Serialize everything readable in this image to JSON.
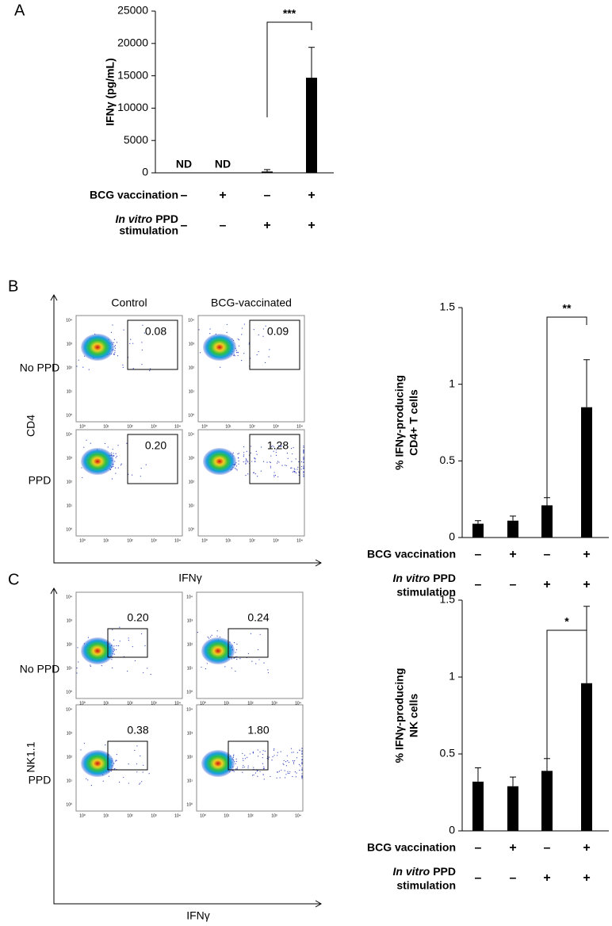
{
  "panel_labels": [
    "A",
    "B",
    "C"
  ],
  "chart_data": [
    {
      "type": "bar",
      "ylabel": [
        "IFNγ (pg/mL)"
      ],
      "categories": [
        null,
        null,
        null,
        null
      ],
      "values": [
        null,
        null,
        200,
        14700
      ],
      "errors": [
        null,
        null,
        300,
        4700
      ],
      "value_labels": [
        "ND",
        "ND",
        null,
        null
      ],
      "color": "#000000",
      "ylim": [
        0,
        25000
      ],
      "yticks": [
        0,
        5000,
        10000,
        15000,
        20000,
        25000
      ],
      "significance": {
        "from": 2,
        "to": 3,
        "label": "***"
      },
      "conditions": [
        {
          "label": "BCG vaccination",
          "signs": [
            "–",
            "+",
            "–",
            "+"
          ]
        },
        {
          "label_italic": "In vitro",
          "label": "PPD",
          "label_line2": "stimulation",
          "signs": [
            "–",
            "–",
            "+",
            "+"
          ]
        }
      ]
    },
    {
      "type": "bar",
      "ylabel": [
        "% IFNγ-producing",
        "CD4+ T cells"
      ],
      "categories": [
        null,
        null,
        null,
        null
      ],
      "values": [
        0.09,
        0.11,
        0.21,
        0.85
      ],
      "errors": [
        0.02,
        0.03,
        0.05,
        0.31
      ],
      "color": "#000000",
      "ylim": [
        0,
        1.5
      ],
      "yticks": [
        0,
        0.5,
        1,
        1.5
      ],
      "significance": {
        "from": 2,
        "to": 3,
        "label": "**"
      },
      "conditions": [
        {
          "label": "BCG vaccination",
          "signs": [
            "–",
            "+",
            "–",
            "+"
          ]
        },
        {
          "label_italic": "In vitro",
          "label": "PPD",
          "label_line2": "stimulation",
          "signs": [
            "–",
            "–",
            "+",
            "+"
          ]
        }
      ]
    },
    {
      "type": "bar",
      "ylabel": [
        "% IFNγ-producing",
        "NK cells"
      ],
      "categories": [
        null,
        null,
        null,
        null
      ],
      "values": [
        0.32,
        0.29,
        0.39,
        0.96
      ],
      "errors": [
        0.09,
        0.06,
        0.08,
        0.5
      ],
      "color": "#000000",
      "ylim": [
        0,
        1.5
      ],
      "yticks": [
        0,
        0.5,
        1,
        1.5
      ],
      "significance": {
        "from": 2,
        "to": 3,
        "label": "*"
      },
      "conditions": [
        {
          "label": "BCG vaccination",
          "signs": [
            "–",
            "+",
            "–",
            "+"
          ]
        },
        {
          "label_italic": "In vitro",
          "label": "PPD",
          "label_line2": "stimulation",
          "signs": [
            "–",
            "–",
            "+",
            "+"
          ]
        }
      ]
    }
  ],
  "flow": [
    {
      "columns": [
        "Control",
        "BCG-vaccinated"
      ],
      "rows": [
        "No PPD",
        "PPD"
      ],
      "gates": [
        "0.08",
        "0.09",
        "0.20",
        "1.28"
      ],
      "ylabel": "CD4",
      "xlabel": "IFNγ",
      "decades": [
        "10⁰",
        "10¹",
        "10²",
        "10³",
        "10⁴"
      ]
    },
    {
      "columns": [
        "Control",
        "BCG-vaccinated"
      ],
      "rows": [
        "No PPD",
        "PPD"
      ],
      "gates": [
        "0.20",
        "0.24",
        "0.38",
        "1.80"
      ],
      "ylabel": "NK1.1",
      "xlabel": "IFNγ",
      "decades": [
        "10⁰",
        "10¹",
        "10²",
        "10³",
        "10⁴"
      ]
    }
  ]
}
